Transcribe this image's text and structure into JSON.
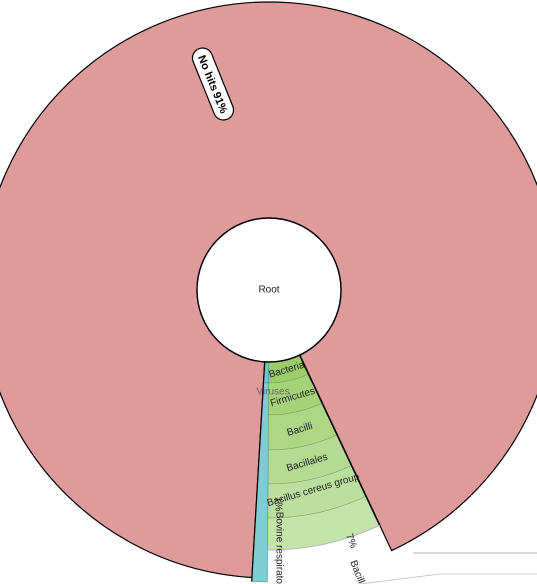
{
  "chart_data": {
    "type": "sunburst",
    "root": {
      "label": "Root"
    },
    "nodes": [
      {
        "id": "nohits",
        "label": "No hits",
        "percent_label": "91%",
        "percent": 91,
        "depth": 1,
        "color": "#df9a9b"
      },
      {
        "id": "viruses",
        "label": "Viruses",
        "percent": 1,
        "depth": 1,
        "color": "#6bc6cf"
      },
      {
        "id": "bovine",
        "label": "Bovine respiratory",
        "percent_label": "1%",
        "percent": 1,
        "depth": 2,
        "parent": "viruses",
        "color": "#7fcdd3"
      },
      {
        "id": "bacteria",
        "label": "Bacteria",
        "percent": 7,
        "depth": 1,
        "color": "#9dcd68"
      },
      {
        "id": "firmicutes",
        "label": "Firmicutes",
        "percent": 7,
        "depth": 2,
        "parent": "bacteria",
        "color": "#a6d37a"
      },
      {
        "id": "bacilli",
        "label": "Bacilli",
        "percent": 7,
        "depth": 3,
        "parent": "firmicutes",
        "color": "#add686"
      },
      {
        "id": "bacillales",
        "label": "Bacillales",
        "percent": 7,
        "depth": 4,
        "parent": "bacilli",
        "color": "#b5da93"
      },
      {
        "id": "bcgroup",
        "label": "Bacillus cereus group",
        "percent": 7,
        "depth": 5,
        "parent": "bacillales",
        "color": "#bcdf9f"
      },
      {
        "id": "bacillus",
        "label": "Bacill",
        "percent_label": "7%",
        "percent": 7,
        "depth": 6,
        "parent": "bcgroup",
        "color": "#c4e4ac"
      }
    ]
  }
}
